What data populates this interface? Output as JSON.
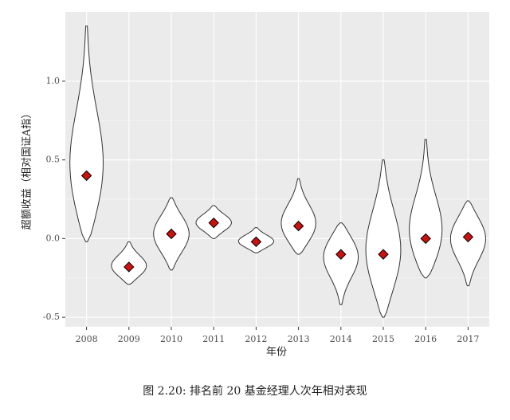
{
  "chart_data": {
    "type": "violin",
    "caption": "图 2.20: 排名前 20 基金经理人次年相对表现",
    "x_label": "年份",
    "y_label": "超额收益（相对国证A指）",
    "categories": [
      "2008",
      "2009",
      "2010",
      "2011",
      "2012",
      "2013",
      "2014",
      "2015",
      "2016",
      "2017"
    ],
    "min": [
      -0.02,
      -0.29,
      -0.2,
      0.0,
      -0.09,
      -0.1,
      -0.42,
      -0.5,
      -0.25,
      -0.3
    ],
    "max": [
      1.35,
      -0.02,
      0.26,
      0.21,
      0.07,
      0.38,
      0.1,
      0.5,
      0.63,
      0.24
    ],
    "mean": [
      0.4,
      -0.18,
      0.03,
      0.1,
      -0.02,
      0.08,
      -0.1,
      -0.1,
      0.0,
      0.01
    ],
    "mean_color": "#cc1111",
    "ylim": [
      -0.56,
      1.44
    ],
    "yticks": [
      -0.5,
      {
        "value": 0,
        "label": "0.0"
      },
      0.5,
      {
        "value": 1,
        "label": "1.0"
      }
    ],
    "grid": true
  }
}
